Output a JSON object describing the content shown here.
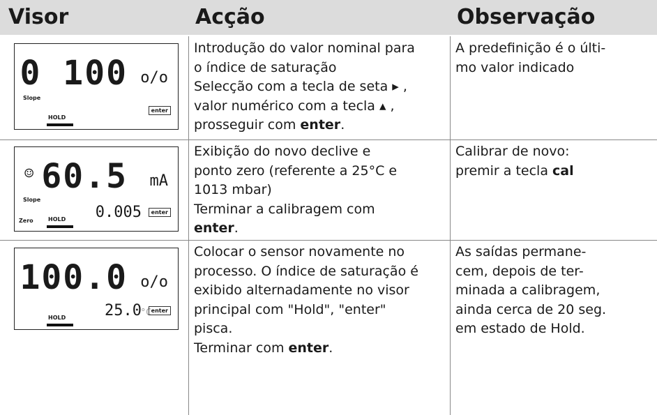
{
  "table": {
    "header": [
      "Visor",
      "Acção",
      "Observação"
    ],
    "rows": [
      {
        "display": {
          "main": "0 100",
          "unit": "o/o",
          "labels": [
            "Slope",
            "HOLD",
            "enter"
          ]
        },
        "action": [
          "Introdução do valor nominal para",
          "o índice de saturação",
          "Selecção com a tecla de seta ▸ ,",
          "valor numérico com a tecla ▴ ,",
          [
            {
              "text": "prosseguir com "
            },
            {
              "text": "enter",
              "bold": true
            },
            {
              "text": "."
            }
          ]
        ],
        "note": [
          "A predefinição é o últi-",
          "mo valor indicado"
        ]
      },
      {
        "display": {
          "main": "60.5",
          "unit": "mA",
          "secondary": "0.005",
          "labels": [
            "Slope",
            "Zero",
            "HOLD",
            "enter"
          ],
          "icon": "☺"
        },
        "action": [
          "Exibição do novo declive e",
          "ponto zero (referente a 25°C e",
          "1013 mbar)",
          "Terminar a calibragem com",
          [
            {
              "text": "enter",
              "bold": true
            },
            {
              "text": "."
            }
          ]
        ],
        "note": [
          "Calibrar de novo:",
          [
            {
              "text": "premir a tecla "
            },
            {
              "text": "cal",
              "bold": true
            }
          ]
        ]
      },
      {
        "display": {
          "main": "100.0",
          "unit": "o/o",
          "secondary": "25.0",
          "secondary_unit": "°C",
          "labels": [
            "HOLD",
            "enter"
          ]
        },
        "action": [
          "Colocar o sensor novamente no",
          "processo. O índice de saturação é",
          "exibido alternadamente no visor",
          "principal com \"Hold\", \"enter\"",
          "pisca.",
          [
            {
              "text": "Terminar com "
            },
            {
              "text": "enter",
              "bold": true
            },
            {
              "text": "."
            }
          ]
        ],
        "note": [
          "As saídas permane-",
          "cem, depois de ter-",
          "minada a calibragem,",
          "ainda cerca de 20 seg.",
          "em estado de Hold."
        ]
      }
    ]
  }
}
